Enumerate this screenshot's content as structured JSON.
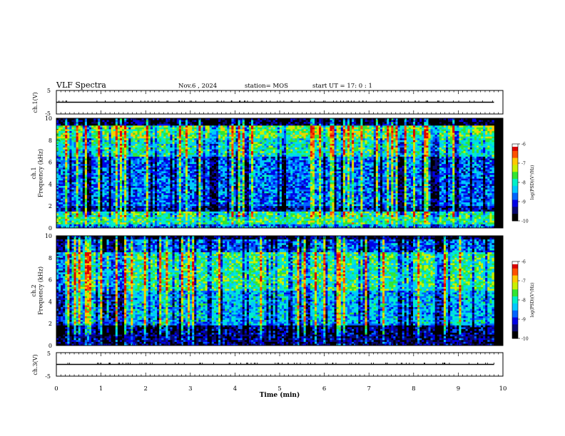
{
  "header": {
    "title": "VLF Spectra",
    "date": "Nov.6 , 2024",
    "station": "station= MOS",
    "start": "start UT = 17: 0 : 1"
  },
  "colors": {
    "colormap": [
      "#000000",
      "#08086e",
      "#0000e6",
      "#0064ff",
      "#00c8ff",
      "#00f0c8",
      "#32e632",
      "#c8f000",
      "#ffc800",
      "#ff5000",
      "#dc0000",
      "#ffffff"
    ],
    "trace": "#000000"
  },
  "chart_data": [
    {
      "id": "ch1-voltage",
      "type": "line",
      "ylabel": "ch.1(V)",
      "ylim": [
        -5,
        5
      ],
      "yticks": [
        5,
        -5
      ],
      "x": [
        0,
        9.8
      ],
      "values": [
        0,
        0
      ]
    },
    {
      "id": "ch1-spectrogram",
      "type": "heatmap",
      "ylabel": "ch.1\nFrequency (kHz)",
      "ylim": [
        0,
        10
      ],
      "yticks": [
        0,
        2,
        4,
        6,
        8,
        10
      ],
      "xlim": [
        0,
        10
      ],
      "data_xmax": 9.8,
      "colorbar": {
        "label": "log(PSD)(V²/Hz)",
        "ticks": [
          -6,
          -7,
          -8,
          -9,
          -10
        ],
        "range": [
          -10,
          -6
        ]
      }
    },
    {
      "id": "ch2-spectrogram",
      "type": "heatmap",
      "ylabel": "ch.2\nFrequency (kHz)",
      "ylim": [
        0,
        10
      ],
      "yticks": [
        0,
        2,
        4,
        6,
        8,
        10
      ],
      "xlim": [
        0,
        10
      ],
      "data_xmax": 9.8,
      "colorbar": {
        "label": "log(PSD)(V²/Hz)",
        "ticks": [
          -6,
          -7,
          -8,
          -9,
          -10
        ],
        "range": [
          -10,
          -6
        ]
      }
    },
    {
      "id": "ch3-voltage",
      "type": "line",
      "ylabel": "ch.3(V)",
      "ylim": [
        -5,
        5
      ],
      "yticks": [
        5,
        -5
      ],
      "x": [
        0,
        9.8
      ],
      "values": [
        0,
        0
      ]
    }
  ],
  "x_axis": {
    "label": "Time (min)",
    "ticks": [
      0,
      1,
      2,
      3,
      4,
      5,
      6,
      7,
      8,
      9,
      10
    ]
  }
}
